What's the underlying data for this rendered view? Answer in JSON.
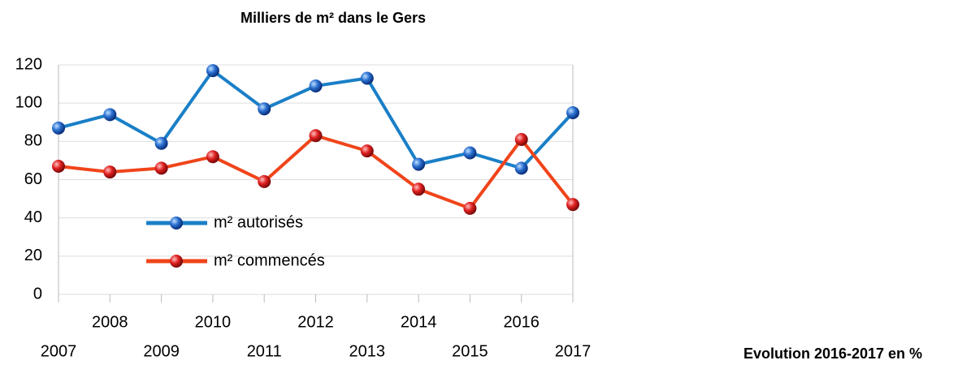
{
  "chart_data": {
    "type": "line",
    "title": "Milliers de m² dans le Gers",
    "categories": [
      "2007",
      "2008",
      "2009",
      "2010",
      "2011",
      "2012",
      "2013",
      "2014",
      "2015",
      "2016",
      "2017"
    ],
    "series": [
      {
        "name": "m² autorisés",
        "color": "#1a7fc7",
        "values": [
          87,
          94,
          79,
          117,
          97,
          109,
          113,
          68,
          74,
          66,
          95
        ]
      },
      {
        "name": "m² commencés",
        "color": "#f0441a",
        "values": [
          67,
          64,
          66,
          72,
          59,
          83,
          75,
          55,
          45,
          81,
          47
        ]
      }
    ],
    "ylim": [
      0,
      120
    ],
    "yticks": [
      0,
      20,
      40,
      60,
      80,
      100,
      120
    ],
    "grid": true,
    "legend": "lower left"
  },
  "annotation": "Evolution 2016-2017 en %"
}
